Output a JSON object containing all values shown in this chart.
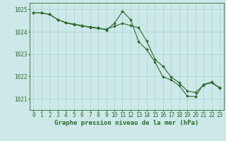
{
  "line1_x": [
    0,
    1,
    2,
    3,
    4,
    5,
    6,
    7,
    8,
    9,
    10,
    11,
    12,
    13,
    14,
    15,
    16,
    17,
    18,
    19,
    20,
    21,
    22,
    23
  ],
  "line1_y": [
    1024.85,
    1024.85,
    1024.78,
    1024.55,
    1024.42,
    1024.35,
    1024.28,
    1024.22,
    1024.18,
    1024.08,
    1024.38,
    1024.92,
    1024.55,
    1023.55,
    1023.2,
    1022.65,
    1021.98,
    1021.85,
    1021.6,
    1021.12,
    1021.1,
    1021.65,
    1021.75,
    1021.5
  ],
  "line2_x": [
    0,
    1,
    2,
    3,
    4,
    5,
    6,
    7,
    8,
    9,
    10,
    11,
    12,
    13,
    14,
    15,
    16,
    17,
    18,
    19,
    20,
    21,
    22,
    23
  ],
  "line2_y": [
    1024.85,
    1024.85,
    1024.78,
    1024.55,
    1024.4,
    1024.32,
    1024.26,
    1024.2,
    1024.15,
    1024.12,
    1024.25,
    1024.38,
    1024.28,
    1024.18,
    1023.58,
    1022.78,
    1022.45,
    1021.98,
    1021.72,
    1021.35,
    1021.28,
    1021.62,
    1021.72,
    1021.48
  ],
  "line_color": "#2d6a2d",
  "bg_color": "#cce8e8",
  "grid_color": "#aad0d0",
  "xlabel": "Graphe pression niveau de la mer (hPa)",
  "xlim": [
    -0.5,
    23.5
  ],
  "ylim": [
    1020.5,
    1025.3
  ],
  "yticks": [
    1021,
    1022,
    1023,
    1024,
    1025
  ],
  "xticks": [
    0,
    1,
    2,
    3,
    4,
    5,
    6,
    7,
    8,
    9,
    10,
    11,
    12,
    13,
    14,
    15,
    16,
    17,
    18,
    19,
    20,
    21,
    22,
    23
  ],
  "xlabel_fontsize": 6.5,
  "tick_fontsize": 5.5
}
